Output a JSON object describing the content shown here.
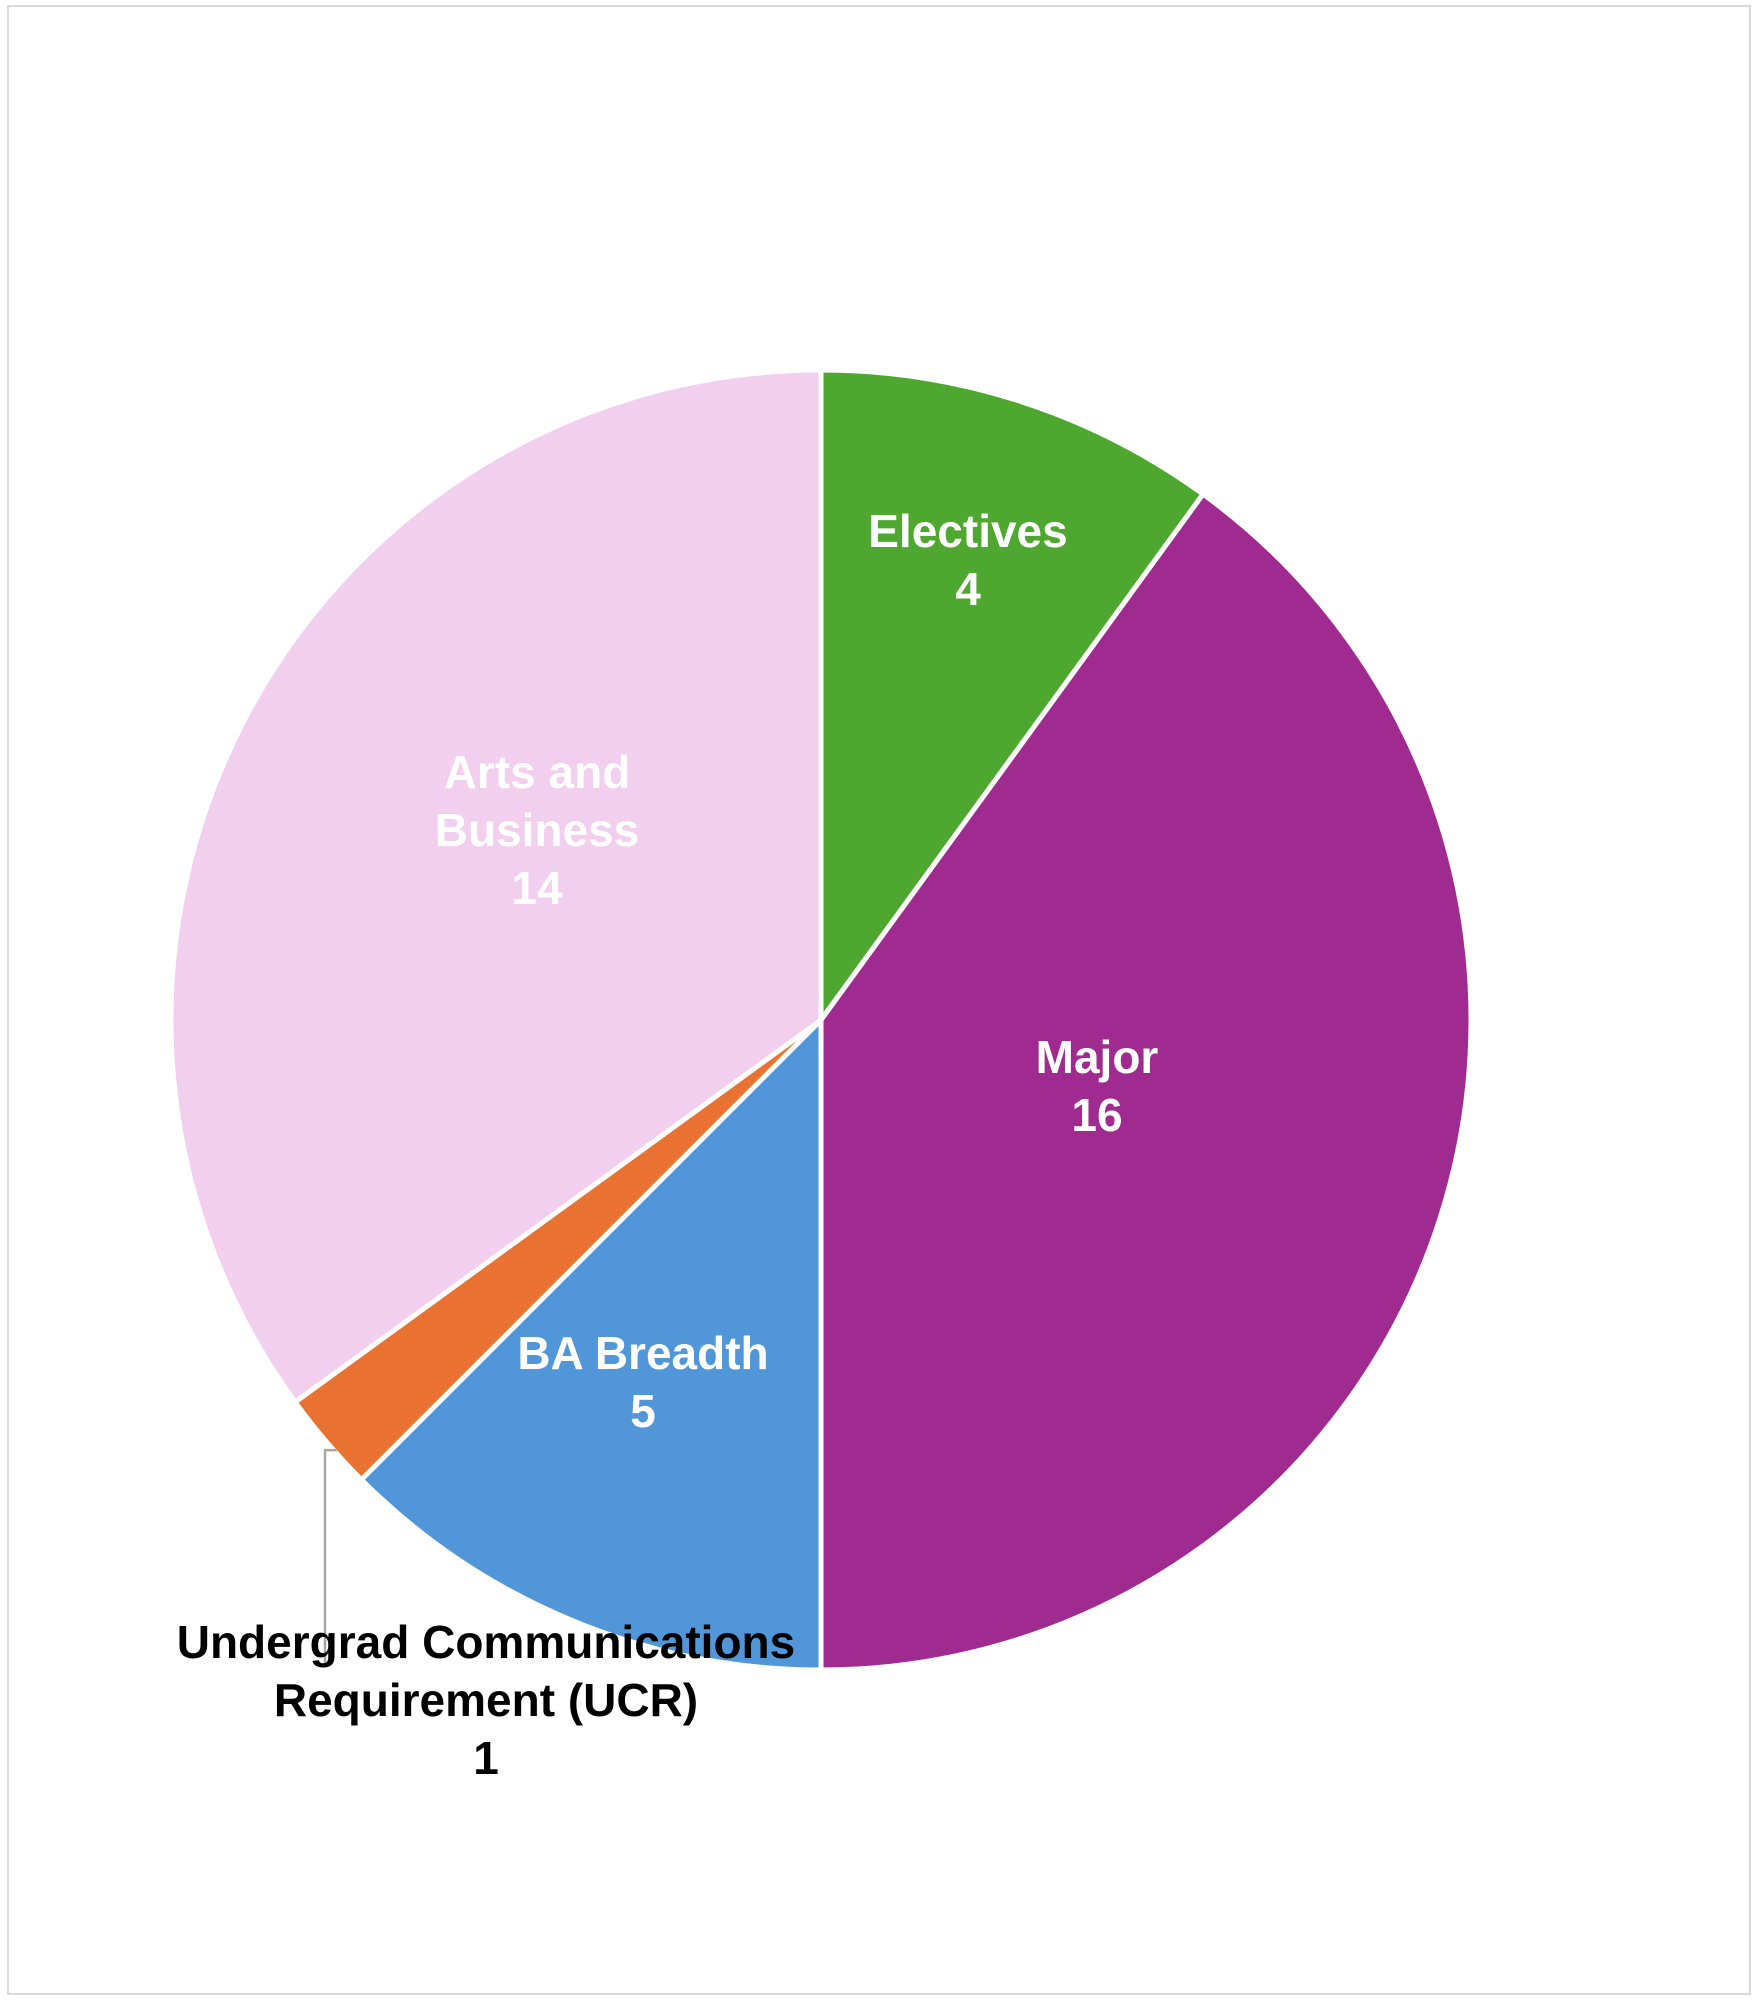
{
  "chart_data": {
    "type": "pie",
    "title": "",
    "start_angle_deg": 0,
    "direction": "clockwise",
    "slices": [
      {
        "label": "Electives",
        "value": 4,
        "color": "#4ea72e"
      },
      {
        "label": "Major",
        "value": 16,
        "color": "#a02b90"
      },
      {
        "label": "BA Breadth",
        "value": 5,
        "color": "#5196d9"
      },
      {
        "label": "Undergrad Communications Requirement (UCR)",
        "value": 1,
        "color": "#e97132"
      },
      {
        "label": "Arts and Business",
        "value": 14,
        "color": "#f2ceef"
      }
    ],
    "data_labels": [
      {
        "lines": [
          "Electives",
          "4"
        ],
        "placement": "inside"
      },
      {
        "lines": [
          "Major",
          "16"
        ],
        "placement": "inside"
      },
      {
        "lines": [
          "BA Breadth",
          "5"
        ],
        "placement": "inside"
      },
      {
        "lines": [
          "Undergrad Communications",
          "Requirement (UCR)",
          "1"
        ],
        "placement": "outside-with-leader"
      },
      {
        "lines": [
          "Arts and",
          "Business",
          "14"
        ],
        "placement": "inside"
      }
    ],
    "legend": "none"
  }
}
